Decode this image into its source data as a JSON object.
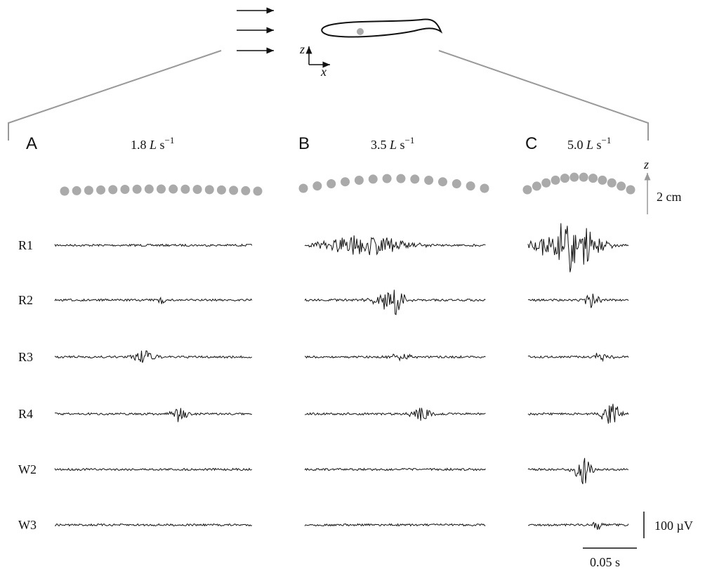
{
  "header": {
    "axis_z": "z",
    "axis_x": "x"
  },
  "panels": [
    {
      "label": "A",
      "speed": "1.8",
      "length_unit": "L",
      "time_unit": "s",
      "exponent": "−1"
    },
    {
      "label": "B",
      "speed": "3.5",
      "length_unit": "L",
      "time_unit": "s",
      "exponent": "−1"
    },
    {
      "label": "C",
      "speed": "5.0",
      "length_unit": "L",
      "time_unit": "s",
      "exponent": "−1"
    }
  ],
  "rows": [
    "R1",
    "R2",
    "R3",
    "R4",
    "W2",
    "W3"
  ],
  "scale": {
    "depth_axis": "z",
    "depth": "2 cm",
    "voltage": "100 µV",
    "time": "0.05 s"
  }
}
